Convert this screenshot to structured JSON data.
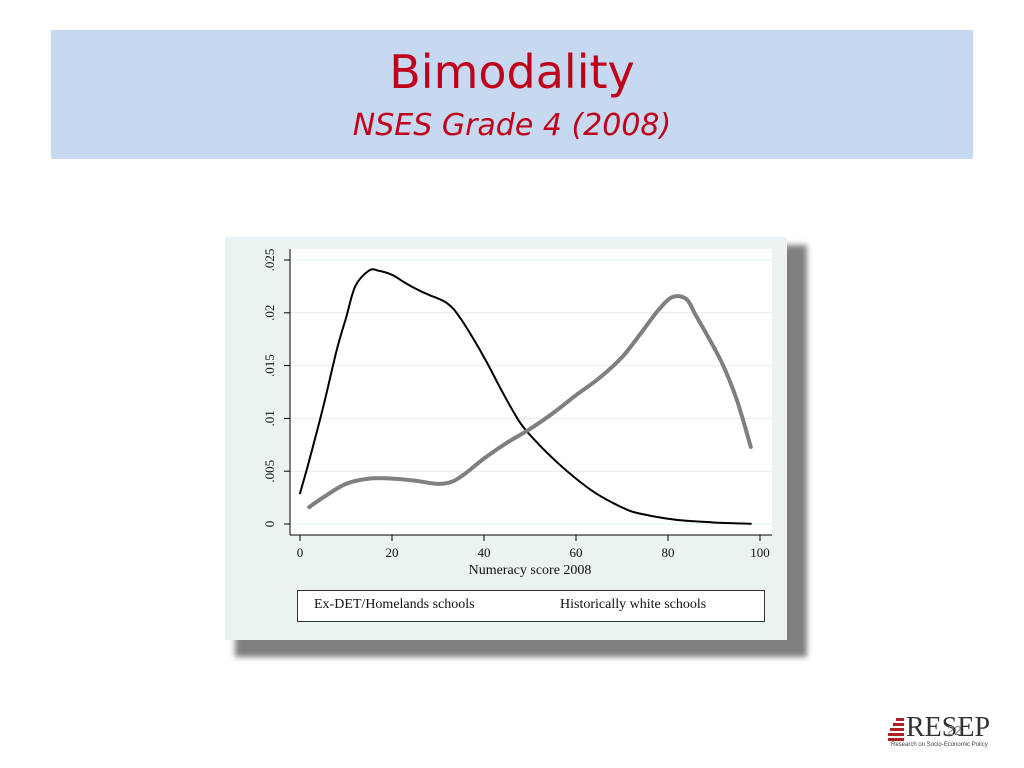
{
  "slide": {
    "title": "Bimodality",
    "subtitle": "NSES Grade 4 (2008)",
    "slide_number": "22",
    "logo_text": "RESEP",
    "logo_tagline": "Research on Socio-Economic Policy"
  },
  "chart_data": {
    "type": "line",
    "title": "",
    "xlabel": "Numeracy score 2008",
    "ylabel": "",
    "xlim": [
      0,
      100
    ],
    "ylim": [
      0,
      0.025
    ],
    "x_ticks": [
      0,
      20,
      40,
      60,
      80,
      100
    ],
    "x_tick_labels": [
      "0",
      "20",
      "40",
      "60",
      "80",
      "100"
    ],
    "y_ticks": [
      0,
      0.005,
      0.01,
      0.015,
      0.02,
      0.025
    ],
    "y_tick_labels": [
      "0",
      ".005",
      ".01",
      ".015",
      ".02",
      ".025"
    ],
    "grid": true,
    "legend_position": "bottom",
    "series": [
      {
        "name": "Ex-DET/Homelands schools",
        "color": "#000000",
        "x": [
          0,
          2,
          5,
          8,
          10,
          12,
          15,
          17,
          20,
          23,
          26,
          28,
          32,
          35,
          40,
          44,
          48,
          52,
          56,
          60,
          64,
          68,
          72,
          76,
          80,
          84,
          88,
          92,
          96,
          98
        ],
        "y": [
          0.0029,
          0.006,
          0.011,
          0.0165,
          0.0195,
          0.0225,
          0.024,
          0.024,
          0.0236,
          0.0228,
          0.0221,
          0.0217,
          0.0209,
          0.0194,
          0.0158,
          0.0125,
          0.0095,
          0.0075,
          0.0058,
          0.0043,
          0.003,
          0.002,
          0.0012,
          0.0008,
          0.0005,
          0.0003,
          0.0002,
          0.0001,
          5e-05,
          3e-05
        ]
      },
      {
        "name": "Historically white schools",
        "color": "#7f7f7f",
        "x": [
          2,
          5,
          10,
          15,
          20,
          25,
          30,
          33,
          36,
          40,
          45,
          50,
          55,
          60,
          65,
          70,
          74,
          78,
          81,
          84,
          86,
          89,
          92,
          95,
          98
        ],
        "y": [
          0.0016,
          0.0025,
          0.0038,
          0.0043,
          0.0043,
          0.0041,
          0.0038,
          0.004,
          0.0048,
          0.0062,
          0.0077,
          0.009,
          0.0105,
          0.0122,
          0.0138,
          0.0158,
          0.018,
          0.0203,
          0.0215,
          0.0213,
          0.0198,
          0.0175,
          0.015,
          0.0117,
          0.0073
        ]
      }
    ]
  }
}
